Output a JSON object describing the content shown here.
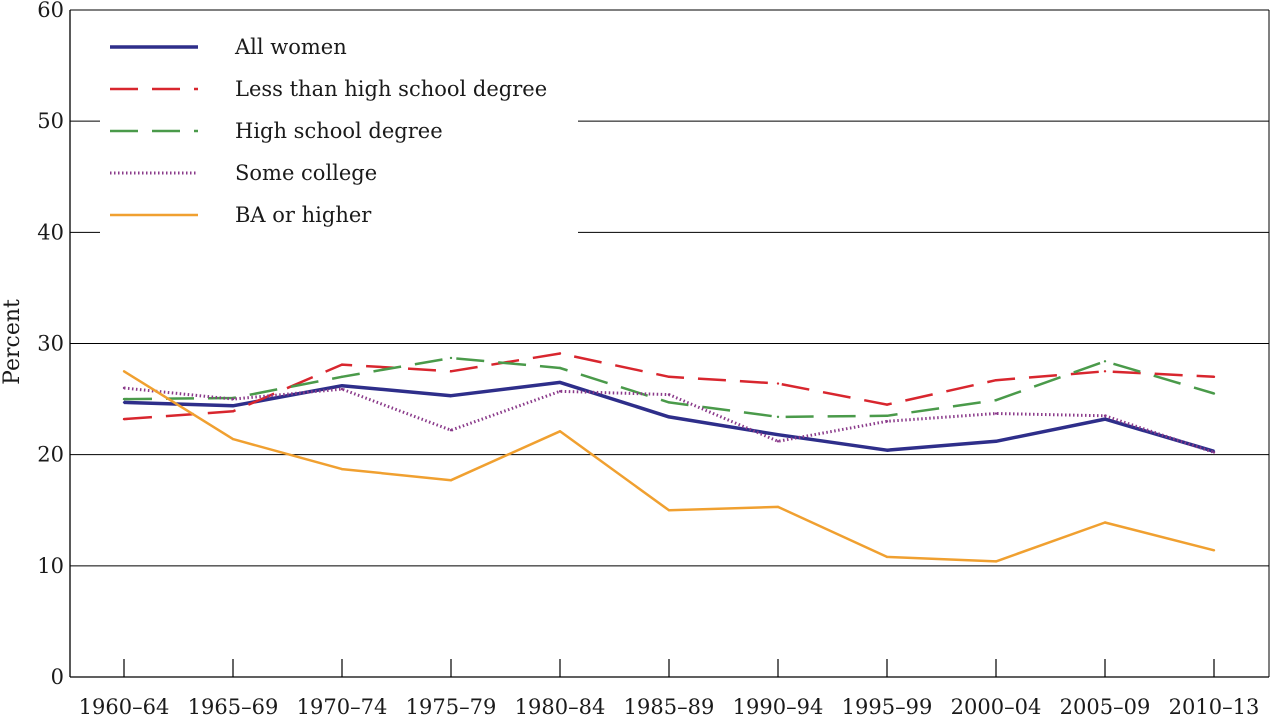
{
  "chart_data": {
    "type": "line",
    "title": "",
    "xlabel": "",
    "ylabel": "Percent",
    "ylim": [
      0,
      60
    ],
    "yticks": [
      0,
      10,
      20,
      30,
      40,
      50,
      60
    ],
    "grid": "horizontal",
    "legend_position": "top-left",
    "categories": [
      "1960–64",
      "1965–69",
      "1970–74",
      "1975–79",
      "1980–84",
      "1985–89",
      "1990–94",
      "1995–99",
      "2000–04",
      "2005–09",
      "2010–13"
    ],
    "series": [
      {
        "name": "All women",
        "color": "#2e2e8a",
        "style": "solid",
        "values": [
          24.7,
          24.4,
          26.2,
          25.3,
          26.5,
          23.4,
          21.8,
          20.4,
          21.2,
          23.2,
          20.3
        ]
      },
      {
        "name": "Less than high school degree",
        "color": "#d8262e",
        "style": "dashed",
        "values": [
          23.2,
          23.9,
          28.1,
          27.5,
          29.1,
          27.0,
          26.4,
          24.5,
          26.7,
          27.5,
          27.0
        ]
      },
      {
        "name": "High school degree",
        "color": "#4a9a4a",
        "style": "dashed",
        "values": [
          25.0,
          25.1,
          27.0,
          28.7,
          27.8,
          24.7,
          23.4,
          23.5,
          24.9,
          28.4,
          25.5
        ]
      },
      {
        "name": "Some college",
        "color": "#8a3a8a",
        "style": "dotted",
        "values": [
          26.0,
          25.0,
          25.9,
          22.2,
          25.7,
          25.4,
          21.2,
          23.0,
          23.7,
          23.5,
          20.2
        ]
      },
      {
        "name": "BA or higher",
        "color": "#f0a030",
        "style": "solid",
        "values": [
          27.5,
          21.4,
          18.7,
          17.7,
          22.1,
          15.0,
          15.3,
          10.8,
          10.4,
          13.9,
          11.4
        ]
      }
    ]
  }
}
